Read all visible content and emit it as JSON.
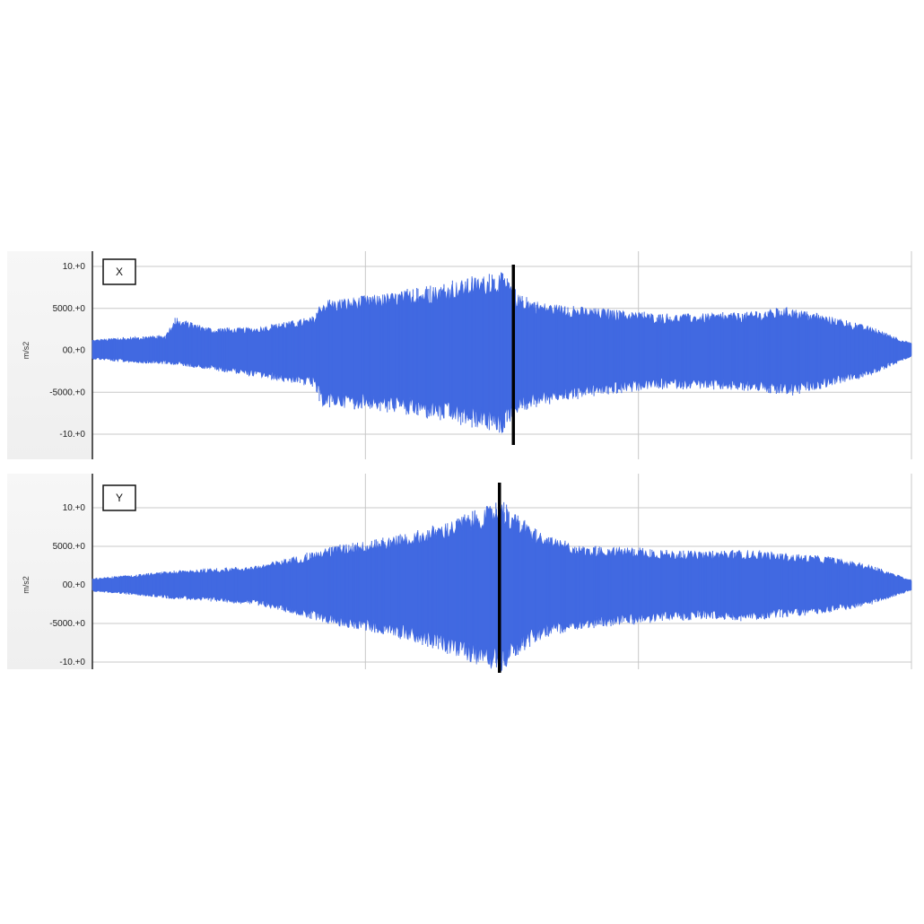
{
  "chart_data": [
    {
      "type": "area",
      "channel_label": "X",
      "ylabel": "m/s2",
      "y_ticks": [
        "10.+0",
        "5000.+0",
        "00.+0",
        "-5000.+0",
        "-10.+0"
      ],
      "ylim": [
        -10000,
        10000
      ],
      "x_grid_count": 3,
      "grid": true,
      "series": [
        {
          "color": "#4169e1",
          "x": [
            0,
            0.05,
            0.09,
            0.1,
            0.15,
            0.2,
            0.27,
            0.28,
            0.35,
            0.42,
            0.47,
            0.5,
            0.52,
            0.55,
            0.6,
            0.65,
            0.7,
            0.75,
            0.8,
            0.85,
            0.9,
            0.95,
            1
          ],
          "upper": [
            1200,
            1500,
            1700,
            3600,
            2400,
            2600,
            3700,
            5600,
            6200,
            7200,
            8200,
            8600,
            6200,
            5300,
            4800,
            4400,
            4000,
            4100,
            4200,
            4800,
            3800,
            2600,
            800
          ],
          "lower": [
            -1000,
            -1400,
            -1500,
            -1600,
            -2200,
            -3000,
            -4000,
            -6200,
            -6600,
            -7600,
            -8600,
            -9200,
            -6800,
            -6000,
            -5200,
            -4600,
            -4200,
            -4300,
            -4400,
            -5000,
            -4000,
            -2800,
            -700
          ]
        }
      ],
      "marker_x": 0.514
    },
    {
      "type": "area",
      "channel_label": "Y",
      "ylabel": "m/s2",
      "y_ticks": [
        "10.+0",
        "5000.+0",
        "00.+0",
        "-5000.+0",
        "-10.+0"
      ],
      "ylim": [
        -10000,
        10000
      ],
      "x_grid_count": 3,
      "grid": true,
      "series": [
        {
          "color": "#4169e1",
          "x": [
            0,
            0.05,
            0.1,
            0.15,
            0.2,
            0.25,
            0.3,
            0.35,
            0.4,
            0.45,
            0.48,
            0.5,
            0.52,
            0.55,
            0.6,
            0.65,
            0.7,
            0.75,
            0.8,
            0.85,
            0.9,
            0.95,
            1
          ],
          "upper": [
            800,
            1200,
            1700,
            2000,
            2300,
            3500,
            4800,
            5500,
            6500,
            8200,
            9400,
            10000,
            8200,
            6000,
            4600,
            4600,
            4200,
            4000,
            4200,
            3800,
            3400,
            2400,
            600
          ],
          "lower": [
            -800,
            -1200,
            -1700,
            -2000,
            -2400,
            -3600,
            -5000,
            -5800,
            -7000,
            -8800,
            -10000,
            -10400,
            -8300,
            -6400,
            -5200,
            -4800,
            -4300,
            -4100,
            -4300,
            -3800,
            -3400,
            -2400,
            -700
          ]
        }
      ],
      "marker_x": 0.497
    }
  ]
}
